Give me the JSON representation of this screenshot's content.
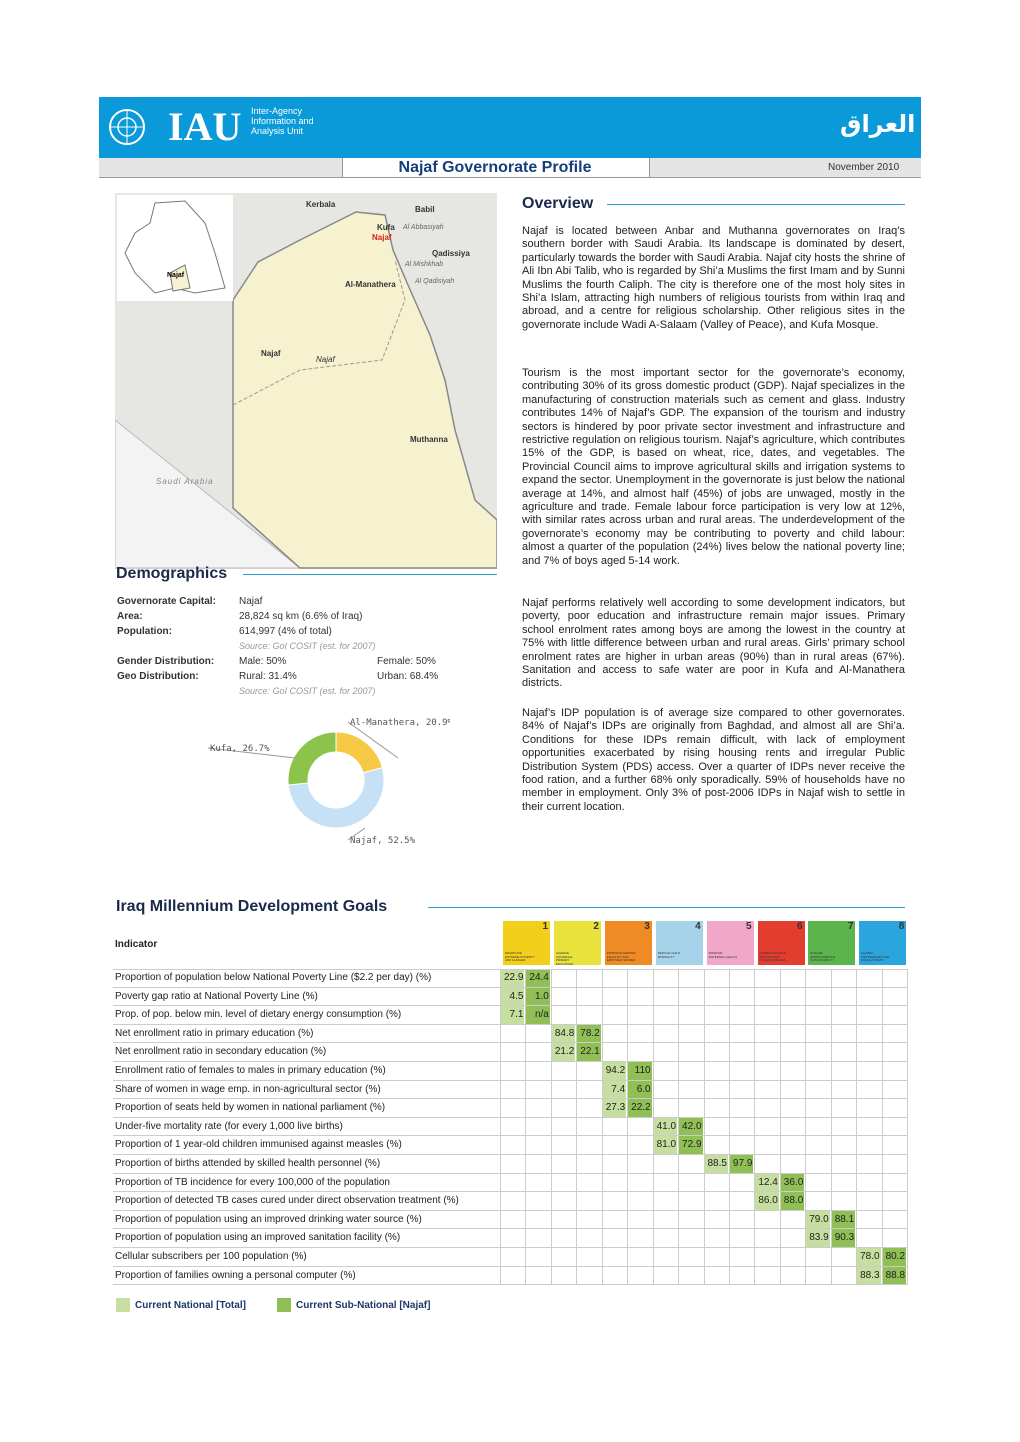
{
  "header": {
    "logo": "IAU",
    "unit": [
      "Inter-Agency",
      "Information and",
      "Analysis Unit"
    ],
    "arabic": "العراق",
    "title": "Najaf Governorate Profile",
    "date": "November 2010"
  },
  "map": {
    "labels": [
      "Kerbala",
      "Babil",
      "Kufa",
      "Al Abbasiyah",
      "Najaf",
      "Qadissiya",
      "Al Mishkhab",
      "Al-Manathera",
      "Al Qadisiyah",
      "Najaf",
      "Najaf",
      "Muthanna",
      "Saudi Arabia"
    ],
    "inset_label": "Najaf"
  },
  "overview": {
    "title": "Overview",
    "paragraphs": [
      "Najaf is located between Anbar and Muthanna governorates on Iraq’s southern border with Saudi Arabia. Its landscape is dominated by desert, particularly towards the border with Saudi Arabia. Najaf city hosts the shrine of Ali Ibn Abi Talib, who is regarded by Shi’a Muslims the first Imam and by Sunni Muslims the fourth Caliph. The city is therefore one of the most holy sites in Shi’a Islam, attracting high numbers of religious tourists from within Iraq and abroad, and a centre for religious scholarship. Other religious sites in the governorate include Wadi A-Salaam (Valley of Peace), and Kufa Mosque.",
      "Tourism is the most important sector for the governorate’s economy, contributing 30% of its gross domestic product (GDP). Najaf specializes in the manufacturing of construction materials such as cement and glass. Industry contributes 14% of Najaf’s GDP. The expansion of the tourism and industry sectors is hindered by poor private sector investment and infrastructure and restrictive regulation on religious tourism. Najaf’s agriculture, which contributes 15% of the GDP, is based on wheat, rice, dates, and vegetables. The Provincial Council aims to improve agricultural skills and irrigation systems to expand the sector. Unemployment in the governorate is just below the national average at 14%, and almost half (45%) of jobs are unwaged, mostly in the agriculture and trade. Female labour force participation is very low at 12%, with similar rates across urban and rural areas. The underdevelopment of the governorate’s economy may be contributing to poverty and child labour: almost a quarter of the population (24%) lives below the national poverty line; and 7% of boys aged 5-14 work.",
      "Najaf performs relatively well according to some development indicators, but poverty, poor education and infrastructure remain major issues. Primary school enrolment rates among boys are among the lowest in the country at 75% with little difference between urban and rural areas. Girls’ primary school enrolment rates are higher in urban areas (90%) than in rural areas (67%). Sanitation and access to safe water are poor in Kufa and Al-Manathera districts.",
      "Najaf’s IDP population is of average size compared to other governorates. 84% of Najaf’s IDPs are originally from Baghdad, and almost all are Shi’a. Conditions for these IDPs remain difficult, with lack of employment opportunities exacerbated by rising housing rents and irregular Public Distribution System (PDS) access. Over a quarter of IDPs never receive the food ration, and a further 68% only sporadically. 59% of households have no member in employment. Only 3% of post-2006 IDPs in Najaf wish to settle in their current location."
    ]
  },
  "demographics": {
    "title": "Demographics",
    "rows": [
      {
        "label": "Governorate Capital:",
        "value": "Najaf"
      },
      {
        "label": "Area:",
        "value": "28,824 sq km (6.6% of Iraq)"
      },
      {
        "label": "Population:",
        "value": "614,997 (4% of total)"
      },
      {
        "source": "Source: GoI COSIT (est. for 2007)"
      },
      {
        "label": "Gender Distribution:",
        "value": "Male: 50%",
        "value2": "Female: 50%"
      },
      {
        "label": "Geo Distribution:",
        "value": "Rural: 31.4%",
        "value2": "Urban: 68.4%"
      },
      {
        "source": "Source: GoI COSIT (est. for 2007)"
      }
    ],
    "chart": {
      "type": "pie",
      "labels": [
        "Al-Manathera, 20.9%",
        "Najaf, 52.5%",
        "Kufa, 26.7%"
      ],
      "values": [
        20.9,
        52.5,
        26.7
      ],
      "colors": [
        "#f6c945",
        "#c6e1f6",
        "#8cc34b"
      ]
    }
  },
  "mdg": {
    "title": "Iraq Millennium Development Goals",
    "indicator_header": "Indicator",
    "colors": {
      "national": "#c6dea0",
      "subnational": "#8fbf55"
    },
    "legend": [
      "Current National [Total]",
      "Current Sub-National [Najaf]"
    ],
    "goals": [
      {
        "number": 1,
        "name": "ERADICATE EXTREME POVERTY AND HUNGER",
        "color": "#f2cf1a",
        "rows": [
          {
            "indicator": "Proportion of population below National Poverty Line ($2.2 per day) (%)",
            "national": "22.9",
            "subnational": "24.4"
          },
          {
            "indicator": "Poverty gap ratio at National Poverty Line (%)",
            "national": "4.5",
            "subnational": "1.0"
          },
          {
            "indicator": "Prop. of pop. below min. level of dietary energy consumption (%)",
            "national": "7.1",
            "subnational": "n/a"
          }
        ]
      },
      {
        "number": 2,
        "name": "ACHIEVE UNIVERSAL PRIMARY EDUCATION",
        "color": "#e9e23a",
        "rows": [
          {
            "indicator": "Net enrollment ratio in primary education (%)",
            "national": "84.8",
            "subnational": "78.2"
          },
          {
            "indicator": "Net enrollment ratio in secondary education (%)",
            "national": "21.2",
            "subnational": "22.1"
          }
        ]
      },
      {
        "number": 3,
        "name": "PROMOTE GENDER EQUALITY AND EMPOWER WOMEN",
        "color": "#ef8a25",
        "rows": [
          {
            "indicator": "Enrollment ratio of females to males in primary education (%)",
            "national": "94.2",
            "subnational": "110"
          },
          {
            "indicator": "Share of women in wage emp. in non-agricultural sector (%)",
            "national": "7.4",
            "subnational": "6.0"
          },
          {
            "indicator": "Proportion of seats held by women in national parliament (%)",
            "national": "27.3",
            "subnational": "22.2"
          }
        ]
      },
      {
        "number": 4,
        "name": "REDUCE CHILD MORTALITY",
        "color": "#a5d4ea",
        "rows": [
          {
            "indicator": "Under-five mortality rate (for every 1,000 live births)",
            "national": "41.0",
            "subnational": "42.0"
          },
          {
            "indicator": "Proportion of 1 year-old children immunised against measles (%)",
            "national": "81.0",
            "subnational": "72.9"
          }
        ]
      },
      {
        "number": 5,
        "name": "IMPROVE MATERNAL HEALTH",
        "color": "#f1a8c8",
        "rows": [
          {
            "indicator": "Proportion of births attended by skilled health personnel (%)",
            "national": "88.5",
            "subnational": "97.9"
          }
        ]
      },
      {
        "number": 6,
        "name": "COMBAT HIV/AIDS, MALARIA AND OTHER DISEASES",
        "color": "#e33d30",
        "rows": [
          {
            "indicator": "Proportion of TB incidence for every 100,000 of the population",
            "national": "12.4",
            "subnational": "36.0"
          },
          {
            "indicator": "Proportion of detected TB cases cured under direct observation treatment (%)",
            "national": "86.0",
            "subnational": "88.0"
          }
        ]
      },
      {
        "number": 7,
        "name": "ENSURE ENVIRONMENTAL SUSTAINABILITY",
        "color": "#5cb54c",
        "rows": [
          {
            "indicator": "Proportion of population using an improved drinking water source (%)",
            "national": "79.0",
            "subnational": "88.1"
          },
          {
            "indicator": "Proportion of population using an improved sanitation facility (%)",
            "national": "83.9",
            "subnational": "90.3"
          }
        ]
      },
      {
        "number": 8,
        "name": "GLOBAL PARTNERSHIP FOR DEVELOPMENT",
        "color": "#2aa5de",
        "rows": [
          {
            "indicator": "Cellular subscribers per 100 population (%)",
            "national": "78.0",
            "subnational": "80.2"
          },
          {
            "indicator": "Proportion of families owning a personal computer (%)",
            "national": "88.3",
            "subnational": "88.8"
          }
        ]
      }
    ]
  }
}
